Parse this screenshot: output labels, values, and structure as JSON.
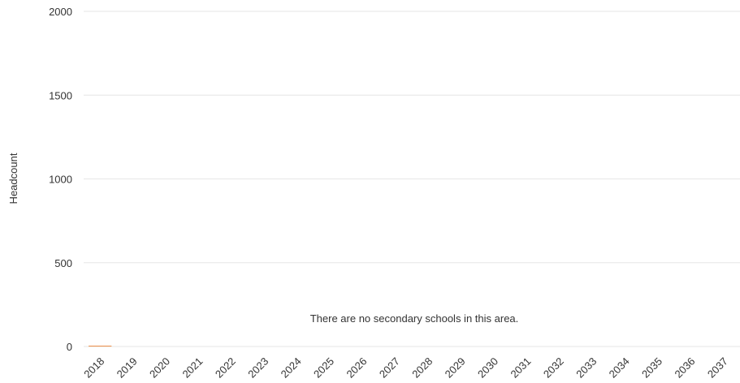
{
  "chart_data": {
    "type": "bar",
    "categories": [
      "2018",
      "2019",
      "2020",
      "2021",
      "2022",
      "2023",
      "2024",
      "2025",
      "2026",
      "2027",
      "2028",
      "2029",
      "2030",
      "2031",
      "2032",
      "2033",
      "2034",
      "2035",
      "2036",
      "2037"
    ],
    "series": [
      {
        "values": [
          4,
          0,
          0,
          0,
          0,
          0,
          0,
          0,
          0,
          0,
          0,
          0,
          0,
          0,
          0,
          0,
          0,
          0,
          0,
          0
        ]
      }
    ],
    "ylabel": "Headcount",
    "ylim": [
      0,
      2000
    ],
    "yticks": [
      0,
      500,
      1000,
      1500,
      2000
    ],
    "grid": true,
    "annotation": "There are no secondary schools in this area.",
    "colors": {
      "bar": "#e87722",
      "grid": "#e6e6e6",
      "text": "#333333"
    }
  }
}
